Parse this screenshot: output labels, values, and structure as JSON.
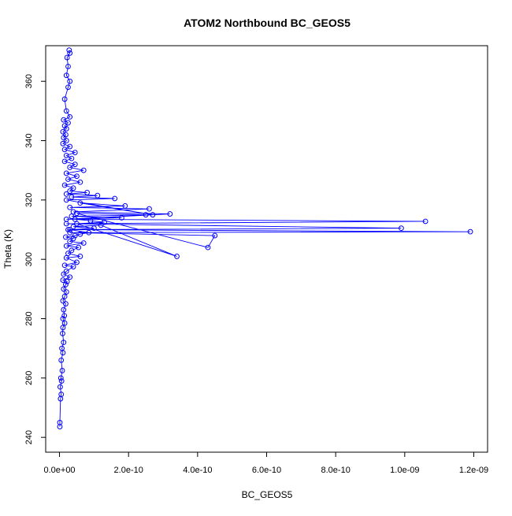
{
  "chart_data": {
    "type": "scatter",
    "title": "ATOM2 Northbound BC_GEOS5",
    "xlabel": "BC_GEOS5",
    "ylabel": "Theta (K)",
    "xlim": [
      -4e-11,
      1.24e-09
    ],
    "ylim": [
      235,
      372
    ],
    "x_ticks": [
      {
        "value": 0,
        "label": "0.0e+00"
      },
      {
        "value": 2e-10,
        "label": "2.0e-10"
      },
      {
        "value": 4e-10,
        "label": "4.0e-10"
      },
      {
        "value": 6e-10,
        "label": "6.0e-10"
      },
      {
        "value": 8e-10,
        "label": "8.0e-10"
      },
      {
        "value": 1e-09,
        "label": "1.0e-09"
      },
      {
        "value": 1.2e-09,
        "label": "1.2e-09"
      }
    ],
    "y_ticks": [
      {
        "value": 240,
        "label": "240"
      },
      {
        "value": 260,
        "label": "260"
      },
      {
        "value": 280,
        "label": "280"
      },
      {
        "value": 300,
        "label": "300"
      },
      {
        "value": 320,
        "label": "320"
      },
      {
        "value": 340,
        "label": "340"
      },
      {
        "value": 360,
        "label": "360"
      }
    ],
    "grid": false,
    "series_color": "#0000ff",
    "marker": "open-circle",
    "connected": true,
    "series": [
      {
        "x": [
          1e-12,
          1e-12,
          3e-12,
          5e-12,
          2e-12,
          6e-12,
          4e-12,
          8e-12,
          5e-12,
          1e-11,
          7e-12,
          1.2e-11,
          9e-12,
          1e-11,
          1.5e-11,
          1e-11,
          1.4e-11,
          1.2e-11,
          1.8e-11,
          1e-11,
          1.5e-11,
          2e-11,
          1.2e-11,
          1.8e-11,
          2.2e-11,
          1e-11,
          3e-11,
          1.2e-11,
          2e-11,
          4e-11,
          1.5e-11,
          5e-11,
          2e-11,
          6e-11,
          2.5e-11,
          3.5e-11,
          5.5e-11,
          2e-11,
          7e-11,
          3e-11,
          4e-11,
          1.8e-11,
          4.5e-11,
          6e-11,
          8.5e-11,
          3e-11,
          1e-10,
          4e-11,
          1.2e-10,
          3.4e-10,
          5e-11,
          1.3e-10,
          9e-11,
          4.5e-11,
          1.8e-10,
          3.5e-11,
          2.5e-10,
          5e-11,
          4.3e-10,
          4.5e-10,
          3e-11,
          1.19e-09,
          2.5e-11,
          9.9e-10,
          2e-11,
          1.06e-09,
          2e-11,
          3.2e-10,
          4e-11,
          2.6e-10,
          3e-11,
          1.9e-10,
          6e-11,
          2.7e-10,
          2e-11,
          1.6e-10,
          3.5e-11,
          1.1e-10,
          2e-11,
          8e-11,
          3e-11,
          4e-11,
          1.5e-11,
          6e-11,
          2.5e-11,
          5e-11,
          2e-11,
          7e-11,
          3e-11,
          4.5e-11,
          1.5e-11,
          3.5e-11,
          2e-11,
          4.5e-11,
          1.5e-11,
          3e-11,
          1e-11,
          2e-11,
          1.2e-11,
          1.8e-11,
          1e-11,
          2e-11,
          1.5e-11,
          2.5e-11,
          1.2e-11,
          3e-11,
          2e-11,
          1.5e-11,
          2.5e-11,
          3e-11,
          2e-11,
          2.5e-11,
          2.2e-11,
          3e-11,
          2.8e-11
        ],
        "y": [
          243.6,
          245.0,
          253.0,
          254.5,
          257.0,
          259.0,
          260.0,
          262.5,
          266.0,
          268.5,
          270.0,
          272.0,
          275.0,
          277.0,
          278.5,
          280.0,
          281.0,
          283.0,
          285.0,
          286.0,
          287.5,
          289.0,
          290.0,
          291.5,
          292.5,
          293.0,
          294.0,
          295.0,
          296.0,
          297.5,
          298.0,
          299.0,
          300.5,
          301.0,
          302.0,
          303.0,
          304.0,
          304.5,
          305.5,
          306.0,
          307.0,
          307.5,
          308.0,
          308.5,
          309.0,
          310.0,
          310.5,
          311.0,
          311.5,
          301.0,
          312.0,
          312.5,
          313.0,
          313.5,
          314.0,
          314.5,
          315.0,
          315.5,
          304.0,
          308.0,
          309.0,
          309.3,
          310.0,
          310.5,
          312.0,
          312.8,
          313.5,
          315.3,
          316.0,
          317.0,
          317.5,
          318.0,
          319.0,
          315.0,
          320.0,
          320.5,
          321.0,
          321.5,
          322.0,
          322.5,
          323.0,
          324.0,
          325.0,
          326.0,
          327.0,
          328.0,
          329.0,
          330.0,
          331.0,
          332.0,
          333.0,
          334.0,
          335.0,
          336.0,
          337.0,
          338.0,
          339.0,
          340.0,
          341.0,
          342.0,
          343.0,
          344.0,
          345.0,
          346.0,
          347.0,
          348.0,
          350.0,
          354.0,
          358.0,
          360.0,
          362.0,
          365.0,
          368.0,
          369.5,
          370.5
        ]
      }
    ]
  }
}
